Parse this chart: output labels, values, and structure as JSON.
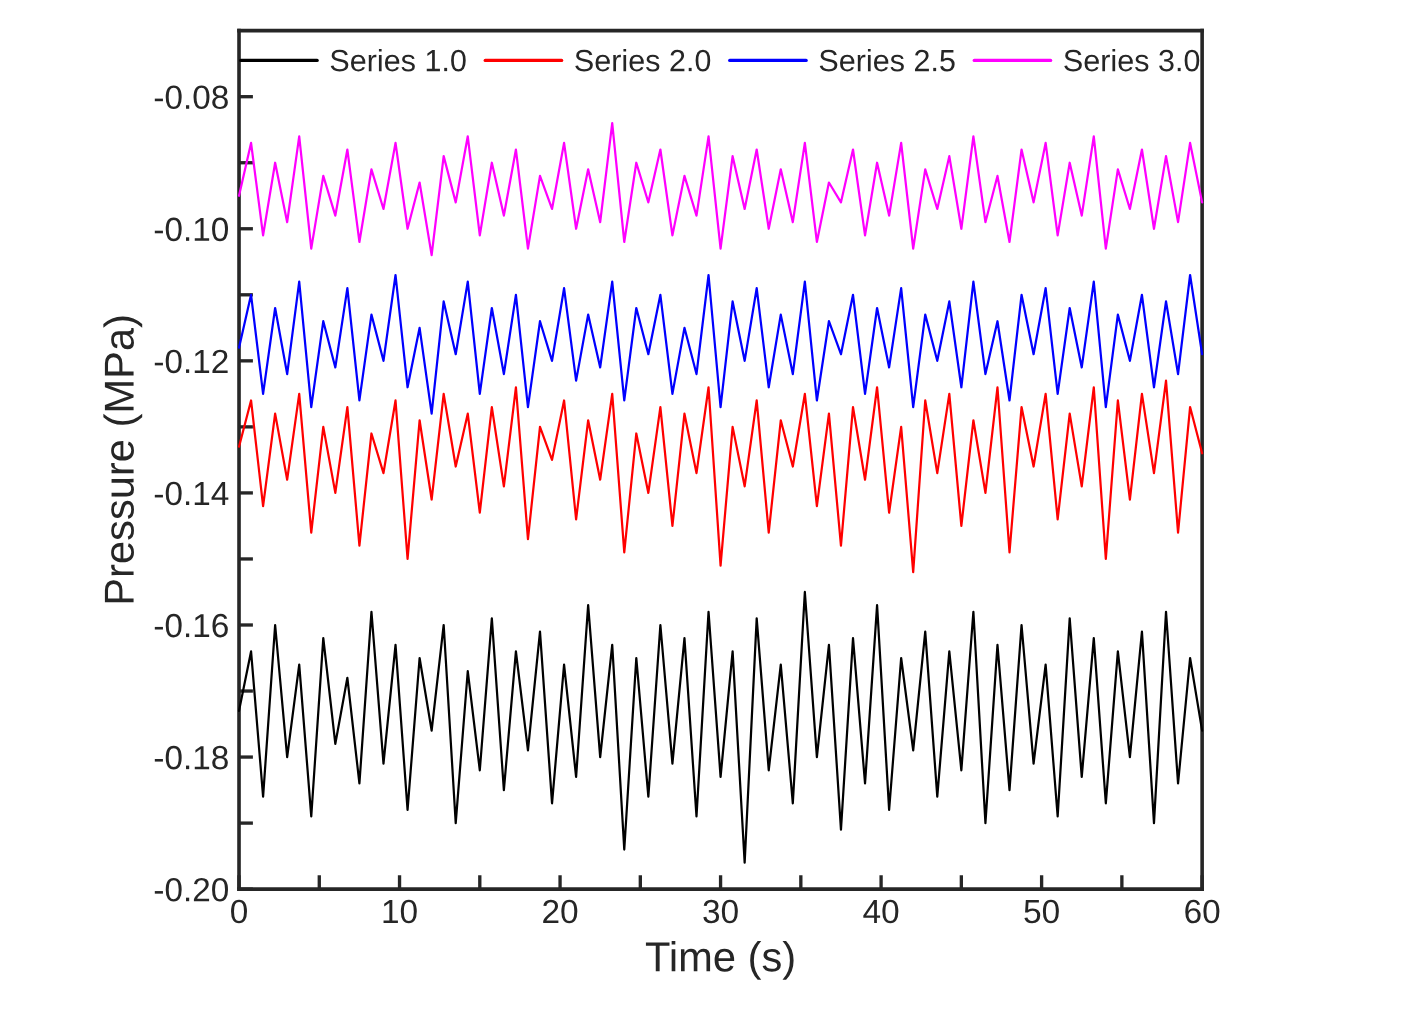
{
  "chart_data": {
    "type": "line",
    "xlabel": "Time (s)",
    "ylabel": "Pressure (MPa)",
    "x": [
      0,
      0.75,
      1.5,
      2.25,
      3,
      3.75,
      4.5,
      5.25,
      6,
      6.75,
      7.5,
      8.25,
      9,
      9.75,
      10.5,
      11.25,
      12,
      12.75,
      13.5,
      14.25,
      15,
      15.75,
      16.5,
      17.25,
      18,
      18.75,
      19.5,
      20.25,
      21,
      21.75,
      22.5,
      23.25,
      24,
      24.75,
      25.5,
      26.25,
      27,
      27.75,
      28.5,
      29.25,
      30,
      30.75,
      31.5,
      32.25,
      33,
      33.75,
      34.5,
      35.25,
      36,
      36.75,
      37.5,
      38.25,
      39,
      39.75,
      40.5,
      41.25,
      42,
      42.75,
      43.5,
      44.25,
      45,
      45.75,
      46.5,
      47.25,
      48,
      48.75,
      49.5,
      50.25,
      51,
      51.75,
      52.5,
      53.25,
      54,
      54.75,
      55.5,
      56.25,
      57,
      57.75,
      58.5,
      59.25,
      60
    ],
    "series": [
      {
        "name": "Series 1.0",
        "color": "#000000",
        "values": [
          -0.173,
          -0.164,
          -0.186,
          -0.16,
          -0.18,
          -0.166,
          -0.189,
          -0.162,
          -0.178,
          -0.168,
          -0.184,
          -0.158,
          -0.181,
          -0.163,
          -0.188,
          -0.165,
          -0.176,
          -0.16,
          -0.19,
          -0.167,
          -0.182,
          -0.159,
          -0.185,
          -0.164,
          -0.179,
          -0.161,
          -0.187,
          -0.166,
          -0.183,
          -0.157,
          -0.18,
          -0.163,
          -0.194,
          -0.165,
          -0.186,
          -0.16,
          -0.181,
          -0.162,
          -0.189,
          -0.158,
          -0.183,
          -0.164,
          -0.196,
          -0.159,
          -0.182,
          -0.166,
          -0.187,
          -0.155,
          -0.18,
          -0.163,
          -0.191,
          -0.162,
          -0.184,
          -0.157,
          -0.188,
          -0.165,
          -0.179,
          -0.161,
          -0.186,
          -0.164,
          -0.182,
          -0.158,
          -0.19,
          -0.163,
          -0.185,
          -0.16,
          -0.181,
          -0.166,
          -0.189,
          -0.159,
          -0.183,
          -0.162,
          -0.187,
          -0.164,
          -0.18,
          -0.161,
          -0.19,
          -0.158,
          -0.184,
          -0.165,
          -0.176
        ]
      },
      {
        "name": "Series 2.0",
        "color": "#ff0000",
        "values": [
          -0.133,
          -0.126,
          -0.142,
          -0.128,
          -0.138,
          -0.125,
          -0.146,
          -0.13,
          -0.14,
          -0.127,
          -0.148,
          -0.131,
          -0.137,
          -0.126,
          -0.15,
          -0.129,
          -0.141,
          -0.125,
          -0.136,
          -0.128,
          -0.143,
          -0.127,
          -0.139,
          -0.124,
          -0.147,
          -0.13,
          -0.135,
          -0.126,
          -0.144,
          -0.129,
          -0.138,
          -0.125,
          -0.149,
          -0.131,
          -0.14,
          -0.127,
          -0.145,
          -0.128,
          -0.137,
          -0.124,
          -0.151,
          -0.13,
          -0.139,
          -0.126,
          -0.146,
          -0.129,
          -0.136,
          -0.125,
          -0.142,
          -0.128,
          -0.148,
          -0.127,
          -0.138,
          -0.124,
          -0.143,
          -0.13,
          -0.152,
          -0.126,
          -0.137,
          -0.125,
          -0.145,
          -0.129,
          -0.14,
          -0.124,
          -0.149,
          -0.127,
          -0.136,
          -0.125,
          -0.144,
          -0.128,
          -0.139,
          -0.124,
          -0.15,
          -0.126,
          -0.141,
          -0.125,
          -0.137,
          -0.123,
          -0.146,
          -0.127,
          -0.134
        ]
      },
      {
        "name": "Series 2.5",
        "color": "#0000ff",
        "values": [
          -0.118,
          -0.11,
          -0.125,
          -0.112,
          -0.122,
          -0.108,
          -0.127,
          -0.114,
          -0.121,
          -0.109,
          -0.126,
          -0.113,
          -0.12,
          -0.107,
          -0.124,
          -0.115,
          -0.128,
          -0.111,
          -0.119,
          -0.108,
          -0.125,
          -0.112,
          -0.122,
          -0.11,
          -0.127,
          -0.114,
          -0.12,
          -0.109,
          -0.123,
          -0.113,
          -0.121,
          -0.108,
          -0.126,
          -0.112,
          -0.119,
          -0.11,
          -0.125,
          -0.115,
          -0.122,
          -0.107,
          -0.127,
          -0.111,
          -0.12,
          -0.109,
          -0.124,
          -0.113,
          -0.122,
          -0.108,
          -0.126,
          -0.114,
          -0.119,
          -0.11,
          -0.125,
          -0.112,
          -0.121,
          -0.109,
          -0.127,
          -0.113,
          -0.12,
          -0.111,
          -0.124,
          -0.108,
          -0.122,
          -0.114,
          -0.126,
          -0.11,
          -0.119,
          -0.109,
          -0.125,
          -0.112,
          -0.121,
          -0.108,
          -0.127,
          -0.113,
          -0.12,
          -0.11,
          -0.124,
          -0.111,
          -0.122,
          -0.107,
          -0.119
        ]
      },
      {
        "name": "Series 3.0",
        "color": "#ff00ff",
        "values": [
          -0.095,
          -0.087,
          -0.101,
          -0.09,
          -0.099,
          -0.086,
          -0.103,
          -0.092,
          -0.098,
          -0.088,
          -0.102,
          -0.091,
          -0.097,
          -0.087,
          -0.1,
          -0.093,
          -0.104,
          -0.089,
          -0.096,
          -0.086,
          -0.101,
          -0.09,
          -0.098,
          -0.088,
          -0.103,
          -0.092,
          -0.097,
          -0.087,
          -0.1,
          -0.091,
          -0.099,
          -0.084,
          -0.102,
          -0.09,
          -0.096,
          -0.088,
          -0.101,
          -0.092,
          -0.098,
          -0.086,
          -0.103,
          -0.089,
          -0.097,
          -0.088,
          -0.1,
          -0.091,
          -0.099,
          -0.087,
          -0.102,
          -0.093,
          -0.096,
          -0.088,
          -0.101,
          -0.09,
          -0.098,
          -0.087,
          -0.103,
          -0.091,
          -0.097,
          -0.089,
          -0.1,
          -0.086,
          -0.099,
          -0.092,
          -0.102,
          -0.088,
          -0.096,
          -0.087,
          -0.101,
          -0.09,
          -0.098,
          -0.086,
          -0.103,
          -0.091,
          -0.097,
          -0.088,
          -0.1,
          -0.089,
          -0.099,
          -0.087,
          -0.096
        ]
      }
    ],
    "xlim": [
      0,
      60
    ],
    "xticks": [
      {
        "value": 0,
        "label": "0"
      },
      {
        "value": 5,
        "label": null
      },
      {
        "value": 10,
        "label": "10"
      },
      {
        "value": 15,
        "label": null
      },
      {
        "value": 20,
        "label": "20"
      },
      {
        "value": 25,
        "label": null
      },
      {
        "value": 30,
        "label": "30"
      },
      {
        "value": 35,
        "label": null
      },
      {
        "value": 40,
        "label": "40"
      },
      {
        "value": 45,
        "label": null
      },
      {
        "value": 50,
        "label": "50"
      },
      {
        "value": 55,
        "label": null
      },
      {
        "value": 60,
        "label": "60"
      }
    ],
    "ylim": [
      -0.2,
      -0.07
    ],
    "yticks": [
      {
        "value": -0.2,
        "label": "-0.20"
      },
      {
        "value": -0.19,
        "label": null
      },
      {
        "value": -0.18,
        "label": "-0.18"
      },
      {
        "value": -0.17,
        "label": null
      },
      {
        "value": -0.16,
        "label": "-0.16"
      },
      {
        "value": -0.15,
        "label": null
      },
      {
        "value": -0.14,
        "label": "-0.14"
      },
      {
        "value": -0.13,
        "label": null
      },
      {
        "value": -0.12,
        "label": "-0.12"
      },
      {
        "value": -0.11,
        "label": null
      },
      {
        "value": -0.1,
        "label": "-0.10"
      },
      {
        "value": -0.09,
        "label": null
      },
      {
        "value": -0.08,
        "label": "-0.08"
      }
    ],
    "grid": false,
    "legend": "top",
    "marker": "none",
    "line_style": "solid"
  }
}
